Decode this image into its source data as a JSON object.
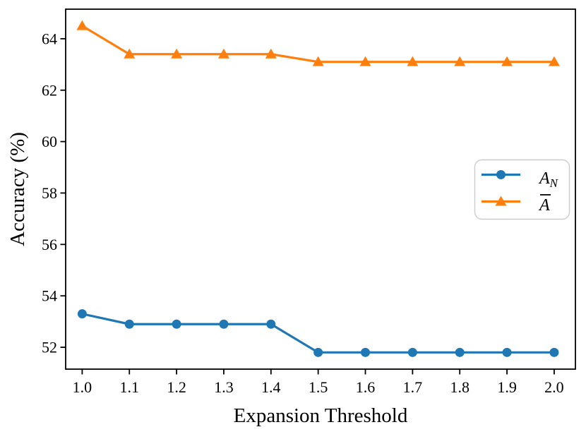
{
  "chart_data": {
    "type": "line",
    "title": "",
    "xlabel": "Expansion Threshold",
    "ylabel": "Accuracy (%)",
    "x": [
      1.0,
      1.1,
      1.2,
      1.3,
      1.4,
      1.5,
      1.6,
      1.7,
      1.8,
      1.9,
      2.0
    ],
    "x_tick_labels": [
      "1.0",
      "1.1",
      "1.2",
      "1.3",
      "1.4",
      "1.5",
      "1.6",
      "1.7",
      "1.8",
      "1.9",
      "2.0"
    ],
    "y_ticks": [
      52,
      54,
      56,
      58,
      60,
      62,
      64
    ],
    "y_tick_labels": [
      "52",
      "54",
      "56",
      "58",
      "60",
      "62",
      "64"
    ],
    "xlim": [
      0.965,
      2.045
    ],
    "ylim": [
      51.15,
      65.15
    ],
    "grid": false,
    "legend": {
      "position": "center-right",
      "border_color": "#cccccc",
      "background": "#ffffff"
    },
    "series": [
      {
        "name": "A_N",
        "label_base": "A",
        "label_subscript": "N",
        "color": "#1f77b4",
        "marker": "circle",
        "values": [
          53.3,
          52.9,
          52.9,
          52.9,
          52.9,
          51.8,
          51.8,
          51.8,
          51.8,
          51.8,
          51.8
        ]
      },
      {
        "name": "A_bar",
        "label_base": "A",
        "label_overbar": true,
        "color": "#ff7f0e",
        "marker": "triangle",
        "values": [
          64.5,
          63.4,
          63.4,
          63.4,
          63.4,
          63.1,
          63.1,
          63.1,
          63.1,
          63.1,
          63.1
        ]
      }
    ]
  }
}
